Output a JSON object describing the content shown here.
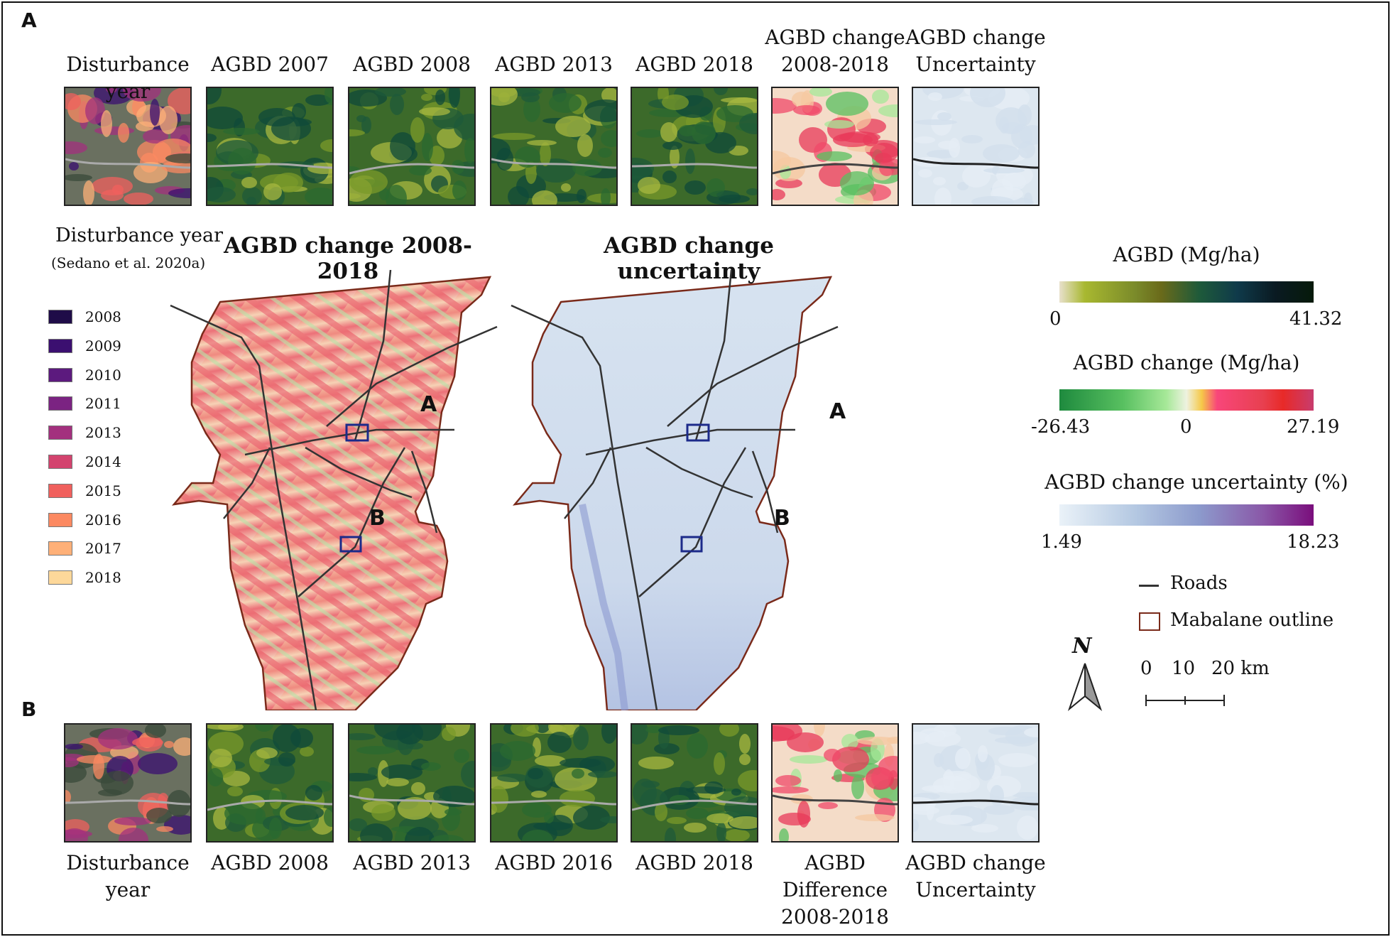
{
  "panel_a": {
    "letter": "A",
    "thumbnails": [
      {
        "title": "Disturbance year",
        "kind": "disturbance"
      },
      {
        "title": "AGBD 2007",
        "kind": "agbd"
      },
      {
        "title": "AGBD 2008",
        "kind": "agbd"
      },
      {
        "title": "AGBD 2013",
        "kind": "agbd"
      },
      {
        "title": "AGBD 2018",
        "kind": "agbd"
      },
      {
        "title": "AGBD change\n2008-2018",
        "kind": "change"
      },
      {
        "title": "AGBD change\nUncertainty",
        "kind": "uncertainty"
      }
    ]
  },
  "panel_b": {
    "letter": "B",
    "thumbnails": [
      {
        "title": "Disturbance year",
        "kind": "disturbance"
      },
      {
        "title": "AGBD 2008",
        "kind": "agbd"
      },
      {
        "title": "AGBD 2013",
        "kind": "agbd"
      },
      {
        "title": "AGBD 2016",
        "kind": "agbd"
      },
      {
        "title": "AGBD 2018",
        "kind": "agbd"
      },
      {
        "title": "AGBD Difference\n2008-2018",
        "kind": "change"
      },
      {
        "title": "AGBD change\nUncertainty",
        "kind": "uncertainty"
      }
    ]
  },
  "maps": {
    "change_title": "AGBD change 2008-2018",
    "uncertainty_title": "AGBD change uncertainty",
    "site_a_label": "A",
    "site_b_label": "B"
  },
  "disturbance_legend": {
    "title": "Disturbance year",
    "source": "(Sedano et al. 2020a)",
    "years": [
      {
        "label": "2008",
        "color": "#1f0c48"
      },
      {
        "label": "2009",
        "color": "#3b0f70"
      },
      {
        "label": "2010",
        "color": "#5c1a7e"
      },
      {
        "label": "2011",
        "color": "#7b2382"
      },
      {
        "label": "2013",
        "color": "#a3307e"
      },
      {
        "label": "2014",
        "color": "#d3436e"
      },
      {
        "label": "2015",
        "color": "#f0605d"
      },
      {
        "label": "2016",
        "color": "#fc8961"
      },
      {
        "label": "2017",
        "color": "#feb078"
      },
      {
        "label": "2018",
        "color": "#fdd89a"
      }
    ]
  },
  "colorbars": {
    "agbd": {
      "title": "AGBD (Mg/ha)",
      "min": "0",
      "max": "41.32"
    },
    "change": {
      "title": "AGBD change (Mg/ha)",
      "min": "-26.43",
      "mid": "0",
      "max": "27.19"
    },
    "uncertainty": {
      "title": "AGBD change uncertainty (%)",
      "min": "1.49",
      "max": "18.23"
    }
  },
  "legend": {
    "roads": "Roads",
    "outline": "Mabalane outline",
    "road_color": "#333333",
    "outline_color": "#7a2a1a"
  },
  "north_arrow": "N",
  "scale_bar": {
    "ticks": [
      "0",
      "10",
      "20 km"
    ]
  }
}
